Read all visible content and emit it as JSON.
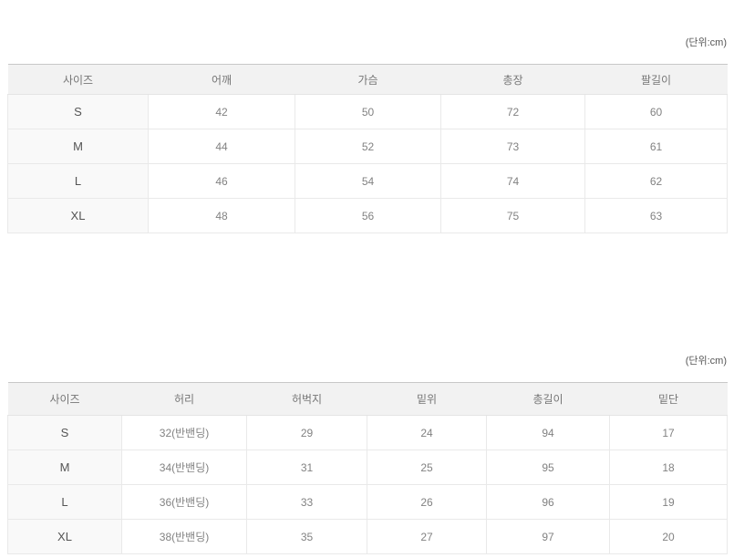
{
  "unit_note": "(단위:cm)",
  "tables": [
    {
      "name": "tops-size-table",
      "unit_label": "(단위:cm)",
      "columns": [
        "사이즈",
        "어깨",
        "가슴",
        "총장",
        "팔길이"
      ],
      "rows": [
        [
          "S",
          "42",
          "50",
          "72",
          "60"
        ],
        [
          "M",
          "44",
          "52",
          "73",
          "61"
        ],
        [
          "L",
          "46",
          "54",
          "74",
          "62"
        ],
        [
          "XL",
          "48",
          "56",
          "75",
          "63"
        ]
      ]
    },
    {
      "name": "bottoms-size-table",
      "unit_label": "(단위:cm)",
      "columns": [
        "사이즈",
        "허리",
        "허벅지",
        "밑위",
        "총길이",
        "밑단"
      ],
      "rows": [
        [
          "S",
          "32(반밴딩)",
          "29",
          "24",
          "94",
          "17"
        ],
        [
          "M",
          "34(반밴딩)",
          "31",
          "25",
          "95",
          "18"
        ],
        [
          "L",
          "36(반밴딩)",
          "33",
          "26",
          "96",
          "19"
        ],
        [
          "XL",
          "38(반밴딩)",
          "35",
          "27",
          "97",
          "20"
        ]
      ]
    }
  ],
  "colors": {
    "header_bg": "#f2f2f2",
    "size_col_bg": "#f9f9f9",
    "table_top_border": "#c8c8c8",
    "cell_border": "#e9e9e9",
    "header_text": "#767676",
    "cell_text": "#828282",
    "size_text": "#555555"
  }
}
